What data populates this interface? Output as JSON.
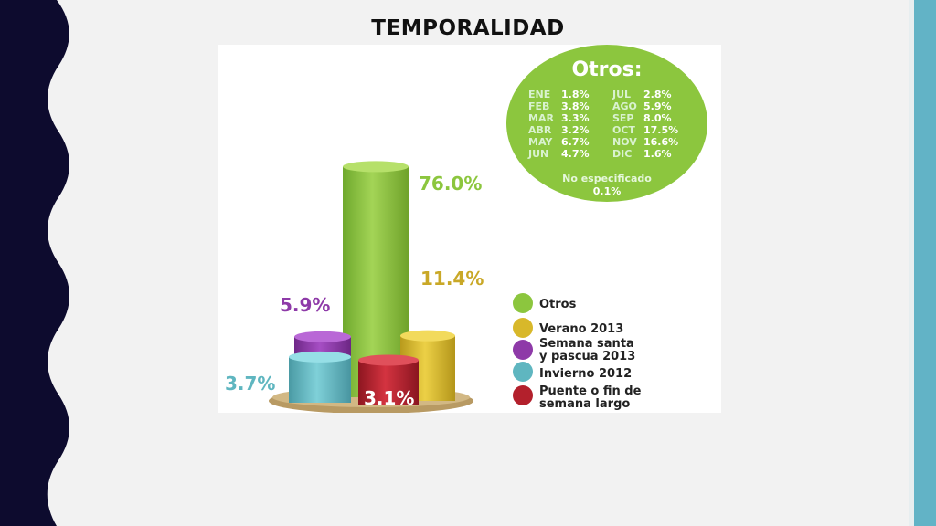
{
  "slide": {
    "title": "TEMPORALIDAD"
  },
  "colors": {
    "left_band": "#0d0b2e",
    "right_stripe": "#62b3c6",
    "otros": "#8cc63e",
    "verano": "#d8b82a",
    "semana_santa": "#8e3aa8",
    "invierno": "#5fb6c0",
    "puente": "#b3202c",
    "base": "#b89a63"
  },
  "chart_data": {
    "type": "bar",
    "categories": [
      "Otros",
      "Verano 2013",
      "Semana santa y pascua 2013",
      "Invierno 2012",
      "Puente o fin de semana largo"
    ],
    "values": [
      76.0,
      11.4,
      5.9,
      3.7,
      3.1
    ],
    "value_labels": [
      "76.0%",
      "11.4%",
      "5.9%",
      "3.7%",
      "3.1%"
    ],
    "legend": {
      "placement": "right",
      "entries": [
        {
          "lines": [
            "Otros"
          ],
          "color": "#8cc63e"
        },
        {
          "lines": [
            "Verano 2013"
          ],
          "color": "#d8b82a"
        },
        {
          "lines": [
            "Semana santa",
            "y pascua 2013"
          ],
          "color": "#8e3aa8"
        },
        {
          "lines": [
            "Invierno 2012"
          ],
          "color": "#5fb6c0"
        },
        {
          "lines": [
            "Puente o fin de",
            "semana largo"
          ],
          "color": "#b3202c"
        }
      ]
    },
    "callout": {
      "title": "Otros:",
      "months_left": [
        {
          "m": "ENE",
          "v": "1.8%"
        },
        {
          "m": "FEB",
          "v": "3.8%"
        },
        {
          "m": "MAR",
          "v": "3.3%"
        },
        {
          "m": "ABR",
          "v": "3.2%"
        },
        {
          "m": "MAY",
          "v": "6.7%"
        },
        {
          "m": "JUN",
          "v": "4.7%"
        }
      ],
      "months_right": [
        {
          "m": "JUL",
          "v": "2.8%"
        },
        {
          "m": "AGO",
          "v": "5.9%"
        },
        {
          "m": "SEP",
          "v": "8.0%"
        },
        {
          "m": "OCT",
          "v": "17.5%"
        },
        {
          "m": "NOV",
          "v": "16.6%"
        },
        {
          "m": "DIC",
          "v": "1.6%"
        }
      ],
      "unspecified_label": "No especificado",
      "unspecified_value": "0.1%"
    }
  }
}
